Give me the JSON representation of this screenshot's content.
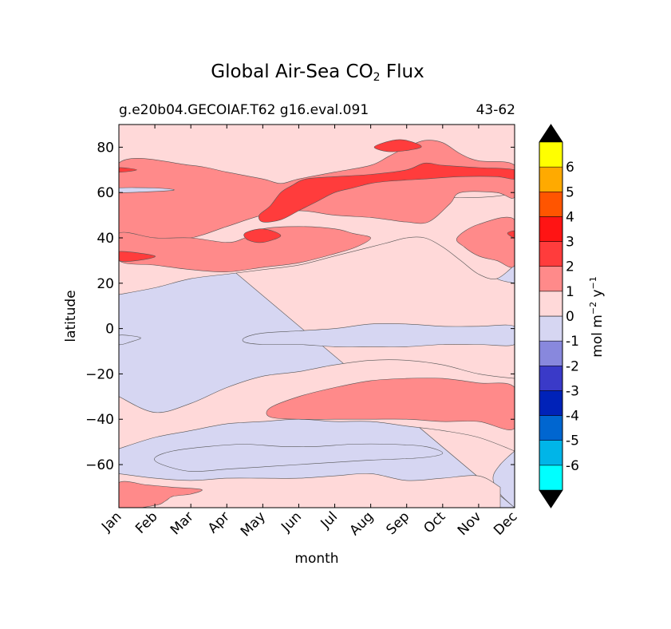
{
  "chart_data": {
    "type": "heatmap",
    "title": "Global Air-Sea CO",
    "title_subscript": "2",
    "title_suffix": "Flux",
    "subtitle_left": "g.e20b04.GECOIAF.T62 g16.eval.091",
    "subtitle_right": "43-62",
    "xlabel": "month",
    "ylabel": "latitude",
    "x_tick_labels": [
      "Jan",
      "Feb",
      "Mar",
      "Apr",
      "May",
      "Jun",
      "Jul",
      "Aug",
      "Sep",
      "Oct",
      "Nov",
      "Dec"
    ],
    "y_ticks": [
      80,
      60,
      40,
      20,
      0,
      -20,
      -40,
      -60
    ],
    "y_tick_labels": [
      "80",
      "60",
      "40",
      "20",
      "0",
      "−20",
      "−40",
      "−60"
    ],
    "ylim": [
      -79,
      90
    ],
    "xlim": [
      0,
      11
    ],
    "colorbar": {
      "label_main": "mol m",
      "label_exp1": "−2",
      "label_mid": " y",
      "label_exp2": "−1",
      "levels": [
        -7,
        -6,
        -5,
        -4,
        -3,
        -2,
        -1,
        0,
        1,
        2,
        3,
        4,
        5,
        6,
        7
      ],
      "tick_labels": [
        "-6",
        "-5",
        "-4",
        "-3",
        "-2",
        "-1",
        "0",
        "1",
        "2",
        "3",
        "4",
        "5",
        "6"
      ],
      "colors": [
        "#00ffff",
        "#00b5e8",
        "#0066d0",
        "#0022b8",
        "#3a3ac8",
        "#8888dd",
        "#d6d6f2",
        "#ffd9d9",
        "#ff8a8a",
        "#ff3c3c",
        "#ff1414",
        "#ff5500",
        "#ffaa00",
        "#ffff00"
      ],
      "extend_color": "#000000"
    },
    "background_color": "#d6d6f2",
    "bands": [
      {
        "level": 0,
        "upper": [
          [
            0,
            68
          ],
          [
            1,
            68
          ],
          [
            2,
            66
          ],
          [
            2.5,
            63
          ],
          [
            3,
            60
          ],
          [
            3.5,
            56
          ],
          [
            4,
            53
          ],
          [
            4.5,
            50
          ],
          [
            5,
            48
          ],
          [
            6,
            46
          ],
          [
            7,
            44
          ],
          [
            8,
            44
          ],
          [
            8.5,
            42
          ],
          [
            9,
            38
          ],
          [
            9.5,
            33
          ],
          [
            10,
            28
          ],
          [
            10.5,
            22
          ],
          [
            11,
            20
          ]
        ],
        "lower": [
          [
            11,
            -54
          ],
          [
            10.6,
            -60
          ],
          [
            10.4,
            -66
          ],
          [
            10.6,
            -73
          ],
          [
            11,
            -79
          ]
        ]
      },
      {
        "level": 0,
        "upper": [
          [
            0,
            70
          ],
          [
            4,
            70
          ],
          [
            11,
            70
          ]
        ],
        "lower": [
          [
            11,
            28
          ],
          [
            10.5,
            22
          ],
          [
            10,
            24
          ],
          [
            9.5,
            30
          ],
          [
            9,
            36
          ],
          [
            8.5,
            40
          ],
          [
            8,
            40
          ],
          [
            7.5,
            38
          ],
          [
            7,
            36
          ],
          [
            6,
            32
          ],
          [
            5,
            28
          ],
          [
            4,
            26
          ],
          [
            3,
            24
          ],
          [
            2,
            22
          ],
          [
            1,
            18
          ],
          [
            0,
            15
          ]
        ]
      },
      {
        "level": 0,
        "upper": [
          [
            0,
            -30
          ],
          [
            1,
            -37
          ],
          [
            2,
            -33
          ],
          [
            3,
            -26
          ],
          [
            4,
            -21
          ],
          [
            5,
            -19
          ],
          [
            6,
            -16
          ],
          [
            7,
            -14
          ],
          [
            8,
            -14
          ],
          [
            9,
            -16
          ],
          [
            10,
            -20
          ],
          [
            11,
            -22
          ]
        ],
        "lower": [
          [
            11,
            -54
          ],
          [
            10,
            -48
          ],
          [
            9,
            -45
          ],
          [
            8,
            -43
          ],
          [
            7,
            -41
          ],
          [
            6,
            -41
          ],
          [
            5,
            -40
          ],
          [
            4,
            -41
          ],
          [
            3,
            -42
          ],
          [
            2,
            -45
          ],
          [
            1,
            -48
          ],
          [
            0,
            -53
          ]
        ]
      },
      {
        "level": 0,
        "upper": [
          [
            0,
            -64
          ],
          [
            1,
            -66
          ],
          [
            2,
            -67
          ],
          [
            3,
            -66
          ],
          [
            4,
            -66
          ],
          [
            5,
            -66
          ],
          [
            6,
            -65
          ],
          [
            7,
            -64
          ],
          [
            8,
            -67
          ],
          [
            9,
            -66
          ],
          [
            10,
            -65
          ],
          [
            10.6,
            -70
          ]
        ],
        "lower": [
          [
            10.6,
            -79
          ],
          [
            0,
            -79
          ]
        ]
      }
    ],
    "regions": [
      {
        "level": 0,
        "points": [
          [
            0,
            90
          ],
          [
            11,
            90
          ],
          [
            11,
            60
          ],
          [
            6,
            60
          ],
          [
            5,
            62
          ],
          [
            4,
            60
          ],
          [
            3,
            60
          ],
          [
            2,
            60
          ],
          [
            0,
            62
          ]
        ]
      },
      {
        "level": 0,
        "points": [
          [
            0,
            48
          ],
          [
            1,
            48
          ],
          [
            2,
            47
          ],
          [
            2.5,
            50
          ],
          [
            2.8,
            55
          ],
          [
            2.5,
            60
          ],
          [
            2,
            62
          ],
          [
            0,
            62
          ]
        ]
      },
      {
        "level": 0,
        "points": [
          [
            9.6,
            63
          ],
          [
            10.5,
            60
          ],
          [
            11,
            60
          ],
          [
            11,
            64
          ],
          [
            10.4,
            66
          ],
          [
            9.6,
            65
          ]
        ]
      },
      {
        "level": 1,
        "points": [
          [
            0,
            73
          ],
          [
            2,
            72
          ],
          [
            3,
            69
          ],
          [
            4,
            66
          ],
          [
            4.5,
            64
          ],
          [
            5,
            66
          ],
          [
            6,
            69
          ],
          [
            7,
            72
          ],
          [
            7.5,
            76
          ],
          [
            8,
            80
          ],
          [
            8.5,
            83
          ],
          [
            9,
            82
          ],
          [
            9.5,
            77
          ],
          [
            10,
            74
          ],
          [
            11,
            72
          ],
          [
            11,
            58
          ],
          [
            10.5,
            60
          ],
          [
            9.5,
            60
          ],
          [
            9.2,
            55
          ],
          [
            8.6,
            47
          ],
          [
            8,
            47
          ],
          [
            7.5,
            48
          ],
          [
            7,
            49
          ],
          [
            6,
            50
          ],
          [
            5,
            52
          ],
          [
            4,
            50
          ],
          [
            3,
            45
          ],
          [
            2,
            40
          ],
          [
            1,
            40
          ],
          [
            0,
            42
          ]
        ]
      },
      {
        "level": 1,
        "points": [
          [
            0,
            30
          ],
          [
            1,
            28
          ],
          [
            2,
            26
          ],
          [
            3,
            25
          ],
          [
            4,
            27
          ],
          [
            5,
            29
          ],
          [
            6,
            33
          ],
          [
            6.6,
            36
          ],
          [
            7,
            40
          ],
          [
            6.5,
            42
          ],
          [
            6,
            44
          ],
          [
            5,
            45
          ],
          [
            4,
            44
          ],
          [
            3.5,
            40
          ],
          [
            3,
            38
          ],
          [
            2,
            40
          ],
          [
            1,
            40
          ],
          [
            0,
            42
          ]
        ]
      },
      {
        "level": 1,
        "points": [
          [
            9.4,
            40
          ],
          [
            10,
            46
          ],
          [
            11,
            48
          ],
          [
            11,
            28
          ],
          [
            10.5,
            30
          ],
          [
            10,
            32
          ],
          [
            9.6,
            36
          ]
        ]
      },
      {
        "level": 1,
        "points": [
          [
            4.2,
            -35
          ],
          [
            5,
            -30
          ],
          [
            6,
            -26
          ],
          [
            7,
            -23
          ],
          [
            8,
            -22
          ],
          [
            9,
            -22
          ],
          [
            10,
            -24
          ],
          [
            11,
            -26
          ],
          [
            11,
            -44
          ],
          [
            10,
            -41
          ],
          [
            9,
            -41
          ],
          [
            8,
            -40
          ],
          [
            7,
            -40
          ],
          [
            6,
            -40
          ],
          [
            5,
            -40
          ],
          [
            4.2,
            -39
          ]
        ]
      },
      {
        "level": 1,
        "points": [
          [
            0,
            -68
          ],
          [
            0.8,
            -69
          ],
          [
            1.5,
            -70
          ],
          [
            2.3,
            -71
          ],
          [
            2,
            -73
          ],
          [
            1.5,
            -74
          ],
          [
            1.3,
            -76
          ],
          [
            1,
            -78
          ],
          [
            0,
            -79
          ]
        ]
      },
      {
        "level": 2,
        "points": [
          [
            0,
            71
          ],
          [
            0.5,
            70
          ],
          [
            0,
            69
          ]
        ]
      },
      {
        "level": 2,
        "points": [
          [
            3.9,
            50
          ],
          [
            4.2,
            54
          ],
          [
            4.5,
            60
          ],
          [
            4.8,
            63
          ],
          [
            5.2,
            66
          ],
          [
            6,
            67
          ],
          [
            7,
            68
          ],
          [
            8,
            70
          ],
          [
            8.5,
            73
          ],
          [
            9,
            72
          ],
          [
            10,
            71
          ],
          [
            11,
            70
          ],
          [
            11,
            66
          ],
          [
            10.5,
            67
          ],
          [
            9.5,
            67
          ],
          [
            8.5,
            66
          ],
          [
            7.5,
            65
          ],
          [
            7,
            64
          ],
          [
            6.5,
            62
          ],
          [
            6,
            60
          ],
          [
            5.5,
            56
          ],
          [
            5,
            52
          ],
          [
            4.5,
            48
          ],
          [
            4,
            47
          ]
        ]
      },
      {
        "level": 2,
        "points": [
          [
            7.1,
            80
          ],
          [
            7.6,
            83
          ],
          [
            8,
            83
          ],
          [
            8.4,
            80
          ],
          [
            7.6,
            78
          ]
        ]
      },
      {
        "level": 2,
        "points": [
          [
            3.5,
            42
          ],
          [
            4,
            44
          ],
          [
            4.5,
            41
          ],
          [
            4,
            38
          ],
          [
            3.6,
            39
          ]
        ]
      },
      {
        "level": 2,
        "points": [
          [
            0,
            34
          ],
          [
            1,
            32
          ],
          [
            0.5,
            30
          ],
          [
            0,
            30
          ]
        ]
      },
      {
        "level": 2,
        "points": [
          [
            10.8,
            42
          ],
          [
            11,
            43
          ],
          [
            11,
            40
          ]
        ]
      },
      {
        "level": -1,
        "points": [
          [
            0,
            -3
          ],
          [
            0.6,
            -4
          ],
          [
            0.3,
            -6
          ],
          [
            0,
            -7
          ]
        ]
      },
      {
        "level": -1,
        "points": [
          [
            3.5,
            -4
          ],
          [
            4,
            -2
          ],
          [
            5,
            -1
          ],
          [
            6,
            0
          ],
          [
            7,
            2
          ],
          [
            8,
            2
          ],
          [
            9,
            1
          ],
          [
            10,
            1
          ],
          [
            11,
            1
          ],
          [
            11,
            -7
          ],
          [
            10,
            -7
          ],
          [
            9,
            -7
          ],
          [
            8,
            -8
          ],
          [
            7,
            -8
          ],
          [
            6,
            -8
          ],
          [
            5,
            -7
          ],
          [
            4,
            -7
          ],
          [
            3.5,
            -6
          ]
        ]
      },
      {
        "level": -1,
        "points": [
          [
            1,
            -57
          ],
          [
            1.5,
            -54
          ],
          [
            2.5,
            -52
          ],
          [
            3.5,
            -51
          ],
          [
            4.5,
            -52
          ],
          [
            5.5,
            -52
          ],
          [
            6.5,
            -51
          ],
          [
            7.5,
            -51
          ],
          [
            8.5,
            -52
          ],
          [
            9,
            -55
          ],
          [
            8.4,
            -57
          ],
          [
            7,
            -58
          ],
          [
            6,
            -59
          ],
          [
            5,
            -60
          ],
          [
            4,
            -61
          ],
          [
            3,
            -62
          ],
          [
            2,
            -63
          ],
          [
            1.2,
            -60
          ]
        ]
      },
      {
        "level": -1,
        "points": [
          [
            0,
            60
          ],
          [
            1.5,
            61
          ],
          [
            1,
            62
          ],
          [
            0,
            62
          ]
        ]
      }
    ]
  }
}
